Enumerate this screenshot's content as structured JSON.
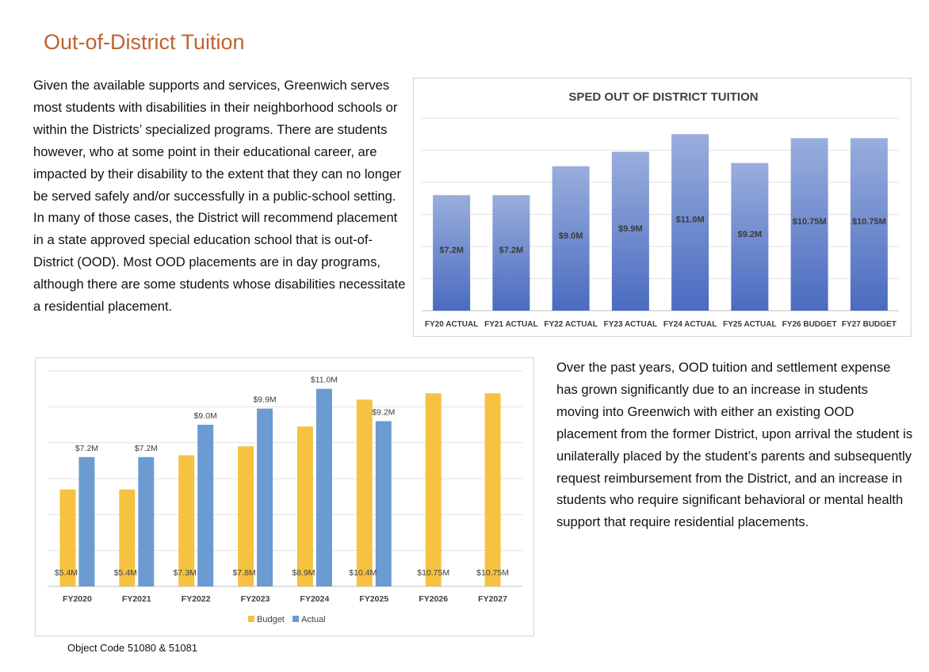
{
  "page": {
    "title": "Out-of-District Tuition",
    "paragraph1": "Given the available supports and services, Greenwich serves most students with disabilities in their neighborhood schools or within the Districts’ specialized programs. There are students however, who at some point in their educational career, are impacted by their disability to the extent that they can no longer be served safely and/or successfully in a public-school setting. In many of those cases, the District will recommend placement in a state approved special education school that is out-of- District (OOD). Most OOD placements are in day programs, although there are some students whose disabilities necessitate a residential placement.",
    "paragraph2": "Over the past years, OOD tuition and settlement expense has grown significantly due to an increase in students moving into Greenwich with either an existing OOD placement from the former District, upon arrival the student is unilaterally placed by the student’s parents and subsequently request reimbursement from the District, and an increase in students who require significant behavioral or mental health support that require residential placements.",
    "footnote": "Object Code 51080 & 51081"
  },
  "colors": {
    "title": "#c0622f",
    "bar_top": "#9aaedd",
    "bar_bottom": "#4a6bc0",
    "budget": "#f5c242",
    "actual": "#6b9bd1"
  },
  "chart_data": [
    {
      "type": "bar",
      "title": "SPED OUT OF DISTRICT TUITION",
      "categories": [
        "FY20 ACTUAL",
        "FY21 ACTUAL",
        "FY22 ACTUAL",
        "FY23 ACTUAL",
        "FY24 ACTUAL",
        "FY25 ACTUAL",
        "FY26 BUDGET",
        "FY27 BUDGET"
      ],
      "values": [
        7.2,
        7.2,
        9.0,
        9.9,
        11.0,
        9.2,
        10.75,
        10.75
      ],
      "labels": [
        "$7.2M",
        "$7.2M",
        "$9.0M",
        "$9.9M",
        "$11.0M",
        "$9.2M",
        "$10.75M",
        "$10.75M"
      ],
      "ylim": [
        0,
        12
      ],
      "grid": true,
      "legend": "none"
    },
    {
      "type": "bar",
      "categories": [
        "FY2020",
        "FY2021",
        "FY2022",
        "FY2023",
        "FY2024",
        "FY2025",
        "FY2026",
        "FY2027"
      ],
      "series": [
        {
          "name": "Budget",
          "values": [
            5.4,
            5.4,
            7.3,
            7.8,
            8.9,
            10.4,
            10.75,
            10.75
          ],
          "labels": [
            "$5.4M",
            "$5.4M",
            "$7.3M",
            "$7.8M",
            "$8.9M",
            "$10.4M",
            "$10.75M",
            "$10.75M"
          ]
        },
        {
          "name": "Actual",
          "values": [
            7.2,
            7.2,
            9.0,
            9.9,
            11.0,
            9.2,
            null,
            null
          ],
          "labels": [
            "$7.2M",
            "$7.2M",
            "$9.0M",
            "$9.9M",
            "$11.0M",
            "$9.2M",
            "",
            ""
          ]
        }
      ],
      "ylim": [
        0,
        12
      ],
      "grid": true,
      "legend": "bottom"
    }
  ]
}
